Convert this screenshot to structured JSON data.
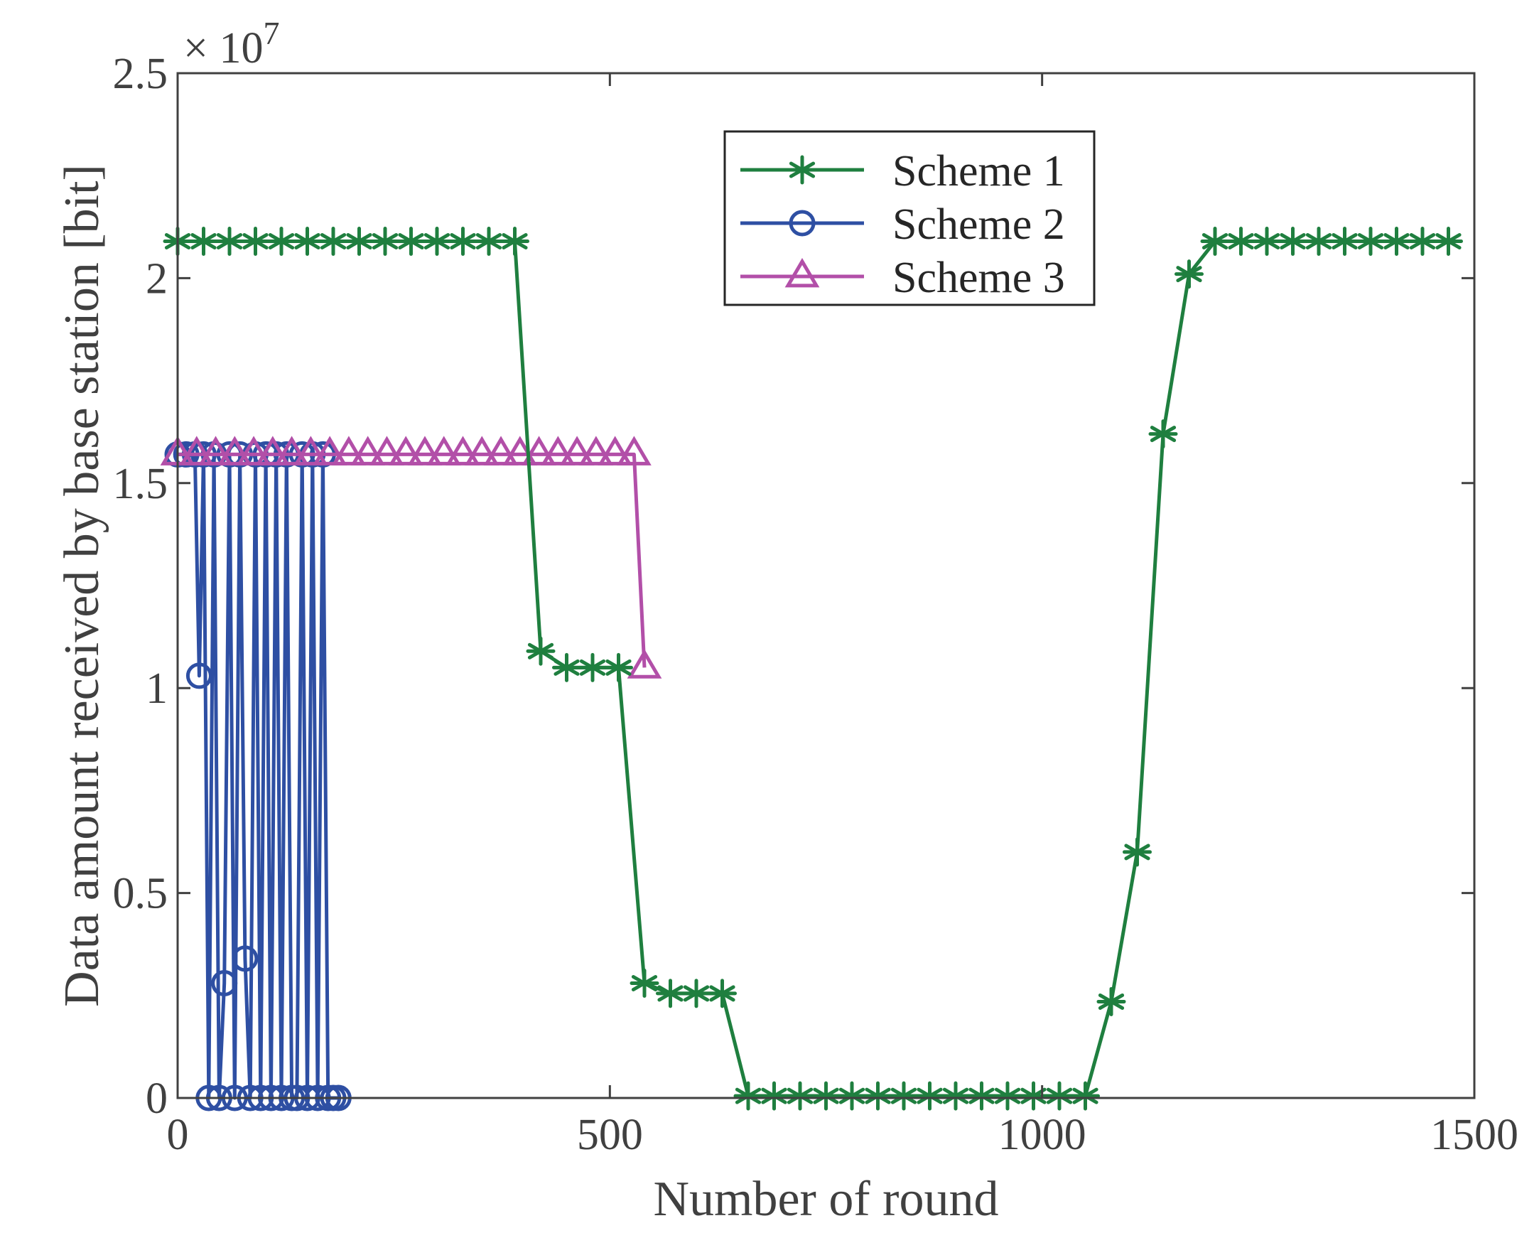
{
  "chart_data": {
    "type": "line",
    "title": "",
    "xlabel": "Number of round",
    "ylabel": "Data amount received by base station [bit]",
    "y_exponent_label": "× 10",
    "y_exponent_power": "7",
    "xlim": [
      0,
      1500
    ],
    "ylim": [
      0,
      2.5
    ],
    "y_scale": 10000000,
    "xticks": [
      0,
      500,
      1000,
      1500
    ],
    "xtick_labels": [
      "0",
      "500",
      "1000",
      "1500"
    ],
    "yticks": [
      0,
      0.5,
      1,
      1.5,
      2,
      2.5
    ],
    "ytick_labels": [
      "0",
      "0.5",
      "1",
      "1.5",
      "2",
      "2.5"
    ],
    "grid": false,
    "legend_position": "top-center",
    "series": [
      {
        "name": "Scheme 1",
        "color": "#1f7f3f",
        "marker": "asterisk",
        "x": [
          0,
          30,
          60,
          90,
          120,
          150,
          180,
          210,
          240,
          270,
          300,
          330,
          360,
          390,
          420,
          450,
          480,
          510,
          540,
          570,
          600,
          630,
          660,
          690,
          720,
          750,
          780,
          810,
          840,
          870,
          900,
          930,
          960,
          990,
          1020,
          1050,
          1080,
          1110,
          1140,
          1170,
          1200,
          1230,
          1260,
          1290,
          1320,
          1350,
          1380,
          1410,
          1440,
          1470
        ],
        "y": [
          2.09,
          2.09,
          2.09,
          2.09,
          2.09,
          2.09,
          2.09,
          2.09,
          2.09,
          2.09,
          2.09,
          2.09,
          2.09,
          2.09,
          1.09,
          1.05,
          1.05,
          1.05,
          0.28,
          0.255,
          0.255,
          0.255,
          0.005,
          0.005,
          0.005,
          0.005,
          0.005,
          0.005,
          0.005,
          0.005,
          0.005,
          0.005,
          0.005,
          0.005,
          0.005,
          0.005,
          0.235,
          0.6,
          1.62,
          2.01,
          2.09,
          2.09,
          2.09,
          2.09,
          2.09,
          2.09,
          2.09,
          2.09,
          2.09,
          2.09
        ]
      },
      {
        "name": "Scheme 2",
        "color": "#2e4fa3",
        "marker": "circle",
        "x": [
          0,
          10,
          20,
          25,
          30,
          36,
          42,
          48,
          54,
          60,
          66,
          72,
          78,
          84,
          90,
          96,
          102,
          108,
          114,
          120,
          126,
          132,
          138,
          144,
          150,
          156,
          162,
          168,
          174,
          180,
          186
        ],
        "y": [
          1.57,
          1.57,
          1.57,
          1.03,
          1.57,
          0,
          1.57,
          0,
          0.28,
          1.57,
          0,
          1.57,
          0.34,
          0,
          1.57,
          0,
          1.57,
          0,
          1.57,
          0,
          1.57,
          0,
          0,
          1.57,
          0,
          1.57,
          0,
          1.57,
          0,
          0,
          0
        ]
      },
      {
        "name": "Scheme 3",
        "color": "#b24fa8",
        "marker": "triangle",
        "x": [
          0,
          22,
          44,
          66,
          88,
          110,
          132,
          154,
          176,
          198,
          220,
          242,
          264,
          286,
          308,
          330,
          352,
          374,
          396,
          418,
          440,
          462,
          484,
          506,
          528,
          540
        ],
        "y": [
          1.57,
          1.57,
          1.57,
          1.57,
          1.57,
          1.57,
          1.57,
          1.57,
          1.57,
          1.57,
          1.57,
          1.57,
          1.57,
          1.57,
          1.57,
          1.57,
          1.57,
          1.57,
          1.57,
          1.57,
          1.57,
          1.57,
          1.57,
          1.57,
          1.57,
          1.05
        ]
      }
    ]
  }
}
